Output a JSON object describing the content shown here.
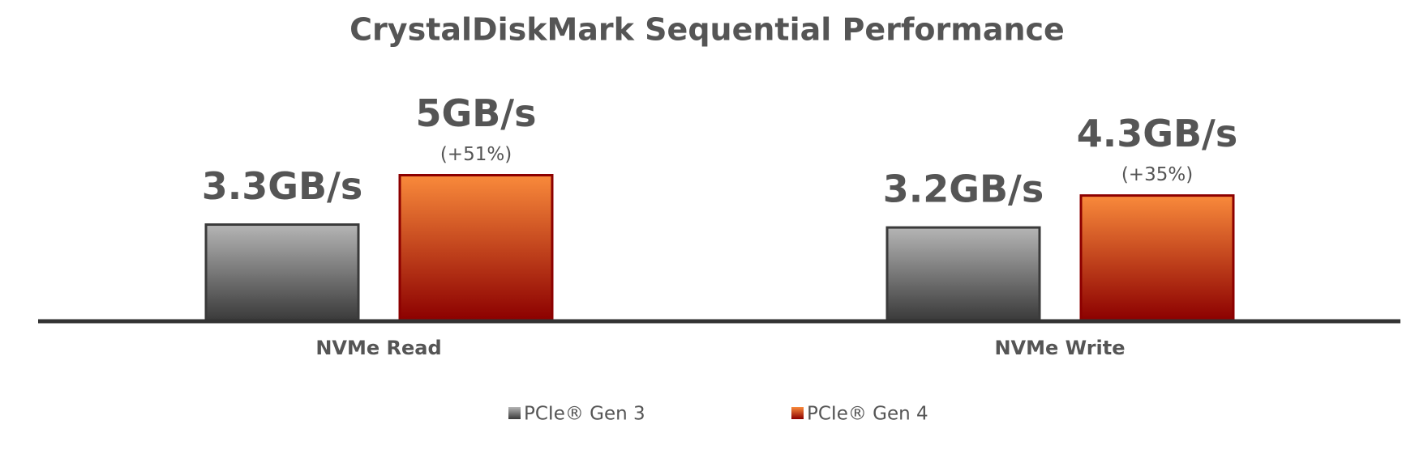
{
  "chart_data": {
    "type": "bar",
    "title": "CrystalDiskMark Sequential Performance",
    "categories": [
      "NVMe Read",
      "NVMe Write"
    ],
    "series": [
      {
        "name": "PCIe® Gen 3",
        "color": "#b5b5b5",
        "gradient": [
          "#b5b5b5",
          "#3a3a3a"
        ],
        "values": [
          3.3,
          3.2
        ],
        "value_labels": [
          "3.3GB/s",
          "3.2GB/s"
        ]
      },
      {
        "name": "PCIe® Gen 4",
        "color": "#f98a3b",
        "gradient": [
          "#f98a3b",
          "#8c0000"
        ],
        "values": [
          5,
          4.3
        ],
        "value_labels": [
          "5GB/s",
          "4.3GB/s"
        ],
        "annotations": [
          "(+51%)",
          "(+35%)"
        ]
      }
    ],
    "legend": "bottom"
  }
}
